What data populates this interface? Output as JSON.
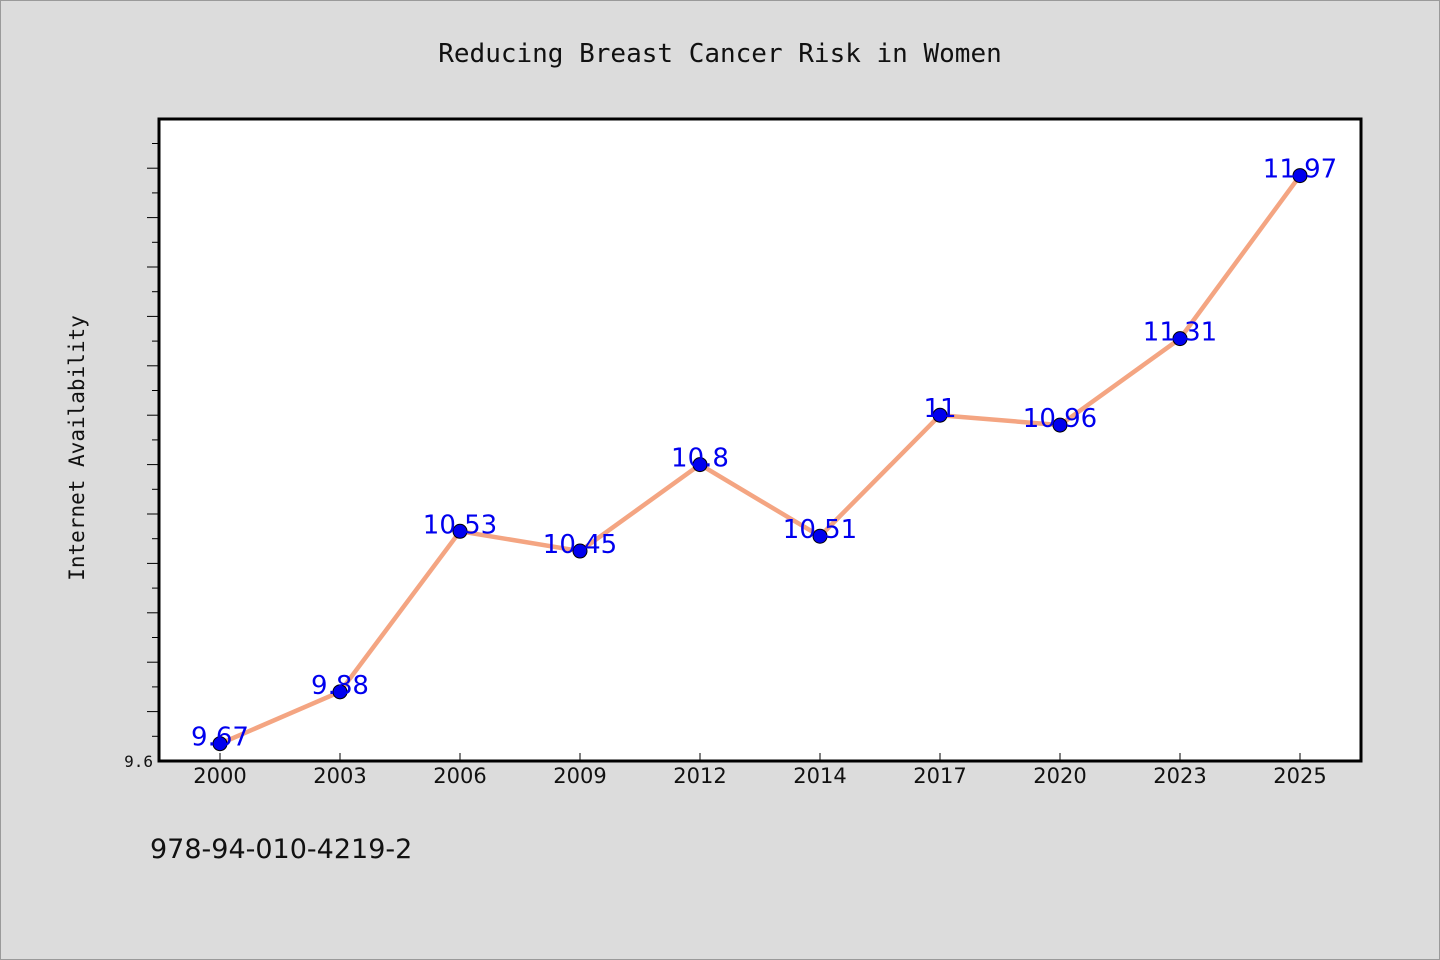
{
  "chart_data": {
    "type": "line",
    "title": "Reducing Breast Cancer Risk in Women",
    "xlabel": "",
    "ylabel": "Internet Availability",
    "categories": [
      "2000",
      "2003",
      "2006",
      "2009",
      "2012",
      "2014",
      "2017",
      "2020",
      "2023",
      "2025"
    ],
    "series": [
      {
        "values": [
          9.67,
          9.88,
          10.53,
          10.45,
          10.8,
          10.51,
          11,
          10.96,
          11.31,
          11.97
        ],
        "data_labels": [
          "9.67",
          "9.88",
          "10.53",
          "10.45",
          "10.8",
          "10.51",
          "11",
          "10.96",
          "11.31",
          "11.97"
        ]
      }
    ],
    "ylim": [
      9.6,
      12.2
    ],
    "ytick_labels": [
      "9.6"
    ],
    "grid": false,
    "legend": "none"
  },
  "footer": {
    "isbn": "978-94-010-4219-2"
  },
  "colors": {
    "background": "#dcdcdc",
    "plot_background": "#ffffff",
    "line": "#f4a582",
    "marker": "#0000ee",
    "data_label": "#0000ee",
    "axis": "#000000"
  }
}
